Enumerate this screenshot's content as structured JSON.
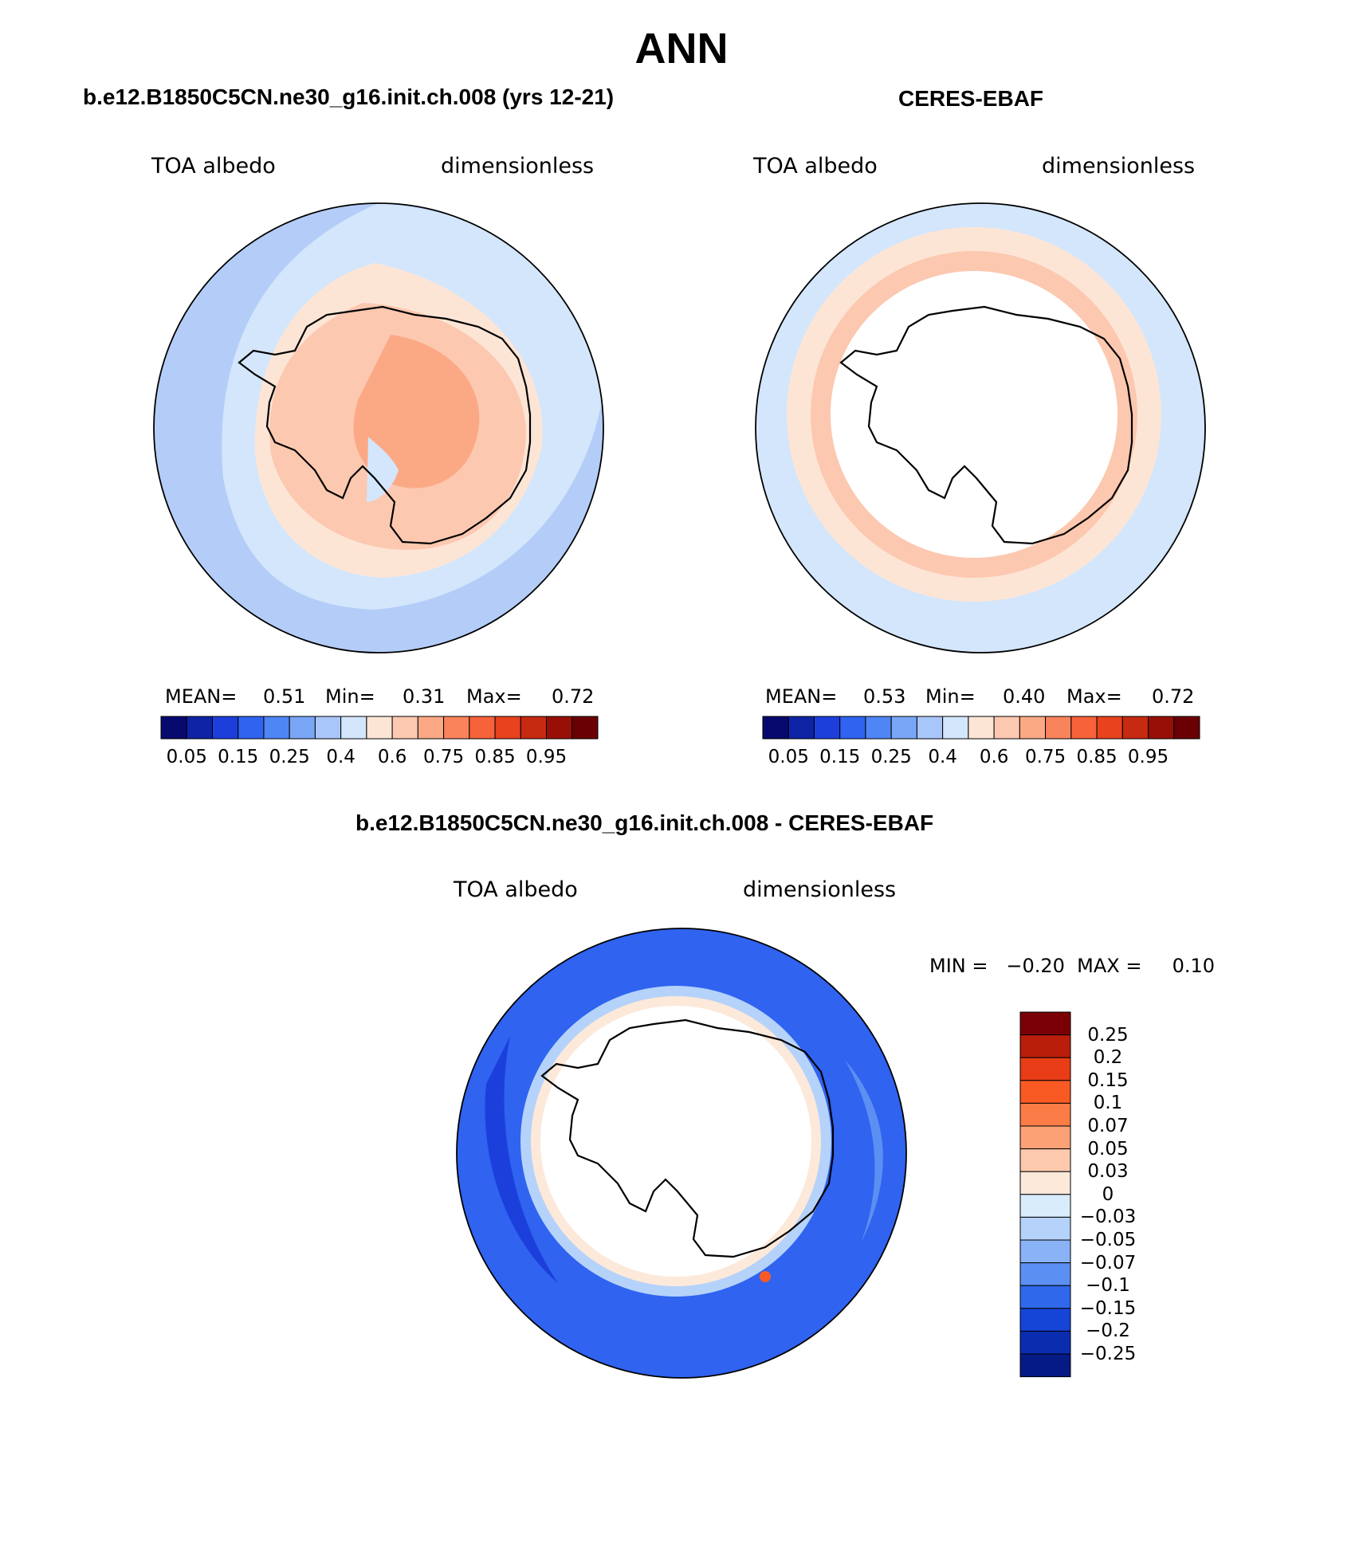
{
  "season": "ANN",
  "panels": {
    "model": {
      "title": "b.e12.B1850C5CN.ne30_g16.init.ch.008 (yrs 12-21)",
      "left_label": "TOA albedo",
      "right_label": "dimensionless",
      "stats": {
        "mean_label": "MEAN=",
        "mean": "0.51",
        "min_label": "Min=",
        "min": "0.31",
        "max_label": "Max=",
        "max": "0.72"
      }
    },
    "obs": {
      "title": "CERES-EBAF",
      "left_label": "TOA albedo",
      "right_label": "dimensionless",
      "stats": {
        "mean_label": "MEAN=",
        "mean": "0.53",
        "min_label": "Min=",
        "min": "0.40",
        "max_label": "Max=",
        "max": "0.72"
      }
    },
    "diff": {
      "title": "b.e12.B1850C5CN.ne30_g16.init.ch.008 - CERES-EBAF",
      "left_label": "TOA albedo",
      "right_label": "dimensionless",
      "stats_text": "MIN =   −0.20  MAX =     0.10"
    }
  },
  "chart_data": [
    {
      "type": "heatmap",
      "projection": "south-polar-stereographic",
      "title": "b.e12.B1850C5CN.ne30_g16.init.ch.008 (yrs 12-21)",
      "variable": "TOA albedo",
      "units": "dimensionless",
      "mean": 0.51,
      "min": 0.31,
      "max": 0.72,
      "colorbar": {
        "levels": [
          0.05,
          0.1,
          0.15,
          0.2,
          0.25,
          0.3,
          0.35,
          0.4,
          0.5,
          0.6,
          0.65,
          0.7,
          0.75,
          0.8,
          0.85,
          0.9,
          0.95
        ],
        "tick_labels": [
          "0.05",
          "0.15",
          "0.25",
          "0.4",
          "0.6",
          "0.75",
          "0.85",
          "0.95"
        ],
        "colors": [
          "#08096e",
          "#0e23a5",
          "#1c3fdc",
          "#2f63f0",
          "#4f86f5",
          "#7aa6f7",
          "#a9c6fa",
          "#d3e6fb",
          "#fde5d6",
          "#fcc8b0",
          "#fba985",
          "#f9845c",
          "#f6623a",
          "#e8421e",
          "#c62a10",
          "#980f08",
          "#6a0004"
        ]
      }
    },
    {
      "type": "heatmap",
      "projection": "south-polar-stereographic",
      "title": "CERES-EBAF",
      "variable": "TOA albedo",
      "units": "dimensionless",
      "mean": 0.53,
      "min": 0.4,
      "max": 0.72,
      "colorbar": {
        "levels": [
          0.05,
          0.1,
          0.15,
          0.2,
          0.25,
          0.3,
          0.35,
          0.4,
          0.5,
          0.6,
          0.65,
          0.7,
          0.75,
          0.8,
          0.85,
          0.9,
          0.95
        ],
        "tick_labels": [
          "0.05",
          "0.15",
          "0.25",
          "0.4",
          "0.6",
          "0.75",
          "0.85",
          "0.95"
        ],
        "colors": [
          "#08096e",
          "#0e23a5",
          "#1c3fdc",
          "#2f63f0",
          "#4f86f5",
          "#7aa6f7",
          "#a9c6fa",
          "#d3e6fb",
          "#fde5d6",
          "#fcc8b0",
          "#fba985",
          "#f9845c",
          "#f6623a",
          "#e8421e",
          "#c62a10",
          "#980f08",
          "#6a0004"
        ]
      }
    },
    {
      "type": "heatmap",
      "projection": "south-polar-stereographic",
      "title": "b.e12.B1850C5CN.ne30_g16.init.ch.008 - CERES-EBAF",
      "variable": "TOA albedo",
      "units": "dimensionless",
      "min": -0.2,
      "max": 0.1,
      "colorbar": {
        "tick_labels": [
          "0.25",
          "0.2",
          "0.15",
          "0.1",
          "0.07",
          "0.05",
          "0.03",
          "0",
          "−0.03",
          "−0.05",
          "−0.07",
          "−0.1",
          "−0.15",
          "−0.2",
          "−0.25"
        ],
        "colors_top_to_bottom": [
          "#7a0006",
          "#b81e0a",
          "#e83d16",
          "#f95a24",
          "#fb7c47",
          "#fca176",
          "#fcc9ac",
          "#fde9da",
          "#d9ecfb",
          "#b5d2fa",
          "#8ab2f6",
          "#5c8ff2",
          "#3068ec",
          "#1545d6",
          "#0a2db0",
          "#061a85"
        ]
      }
    }
  ],
  "colors": {
    "ocean_model": "#b4cdf8",
    "coast": "#000000",
    "diff_ocean": "#2f63f0"
  }
}
